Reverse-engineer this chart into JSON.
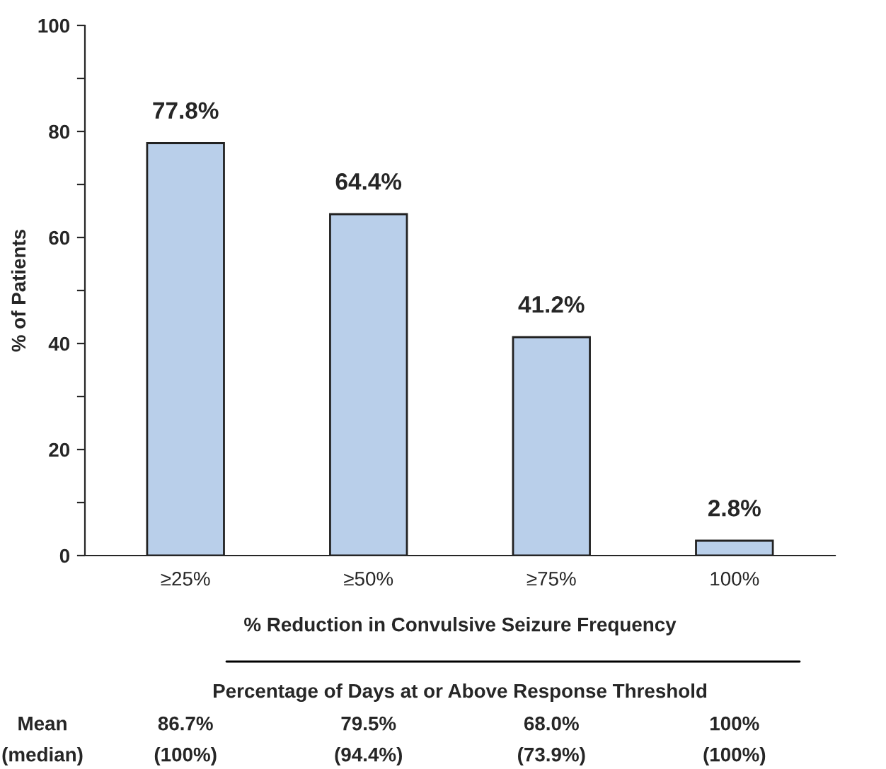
{
  "chart_data": {
    "type": "bar",
    "ylabel": "% of Patients",
    "xlabel": "% Reduction in Convulsive Seizure Frequency",
    "categories": [
      "≥25%",
      "≥50%",
      "≥75%",
      "100%"
    ],
    "values": [
      77.8,
      64.4,
      41.2,
      2.8
    ],
    "value_labels": [
      "77.8%",
      "64.4%",
      "41.2%",
      "2.8%"
    ],
    "color": "#b9cfea",
    "ylim": [
      0,
      100
    ],
    "yticks": [
      0,
      {
        "value": 10,
        "label": null
      },
      20,
      {
        "value": 30,
        "label": null
      },
      40,
      {
        "value": 50,
        "label": null
      },
      60,
      {
        "value": 70,
        "label": null
      },
      80,
      {
        "value": 90,
        "label": null
      },
      100
    ],
    "grid": false,
    "annotations": [
      "Percentage of Days at or Above Response Threshold",
      "Mean",
      "(median)",
      "86.7%",
      "79.5%",
      "68.0%",
      "100%",
      "(100%)",
      "(94.4%)",
      "(73.9%)",
      "(100%)"
    ]
  }
}
